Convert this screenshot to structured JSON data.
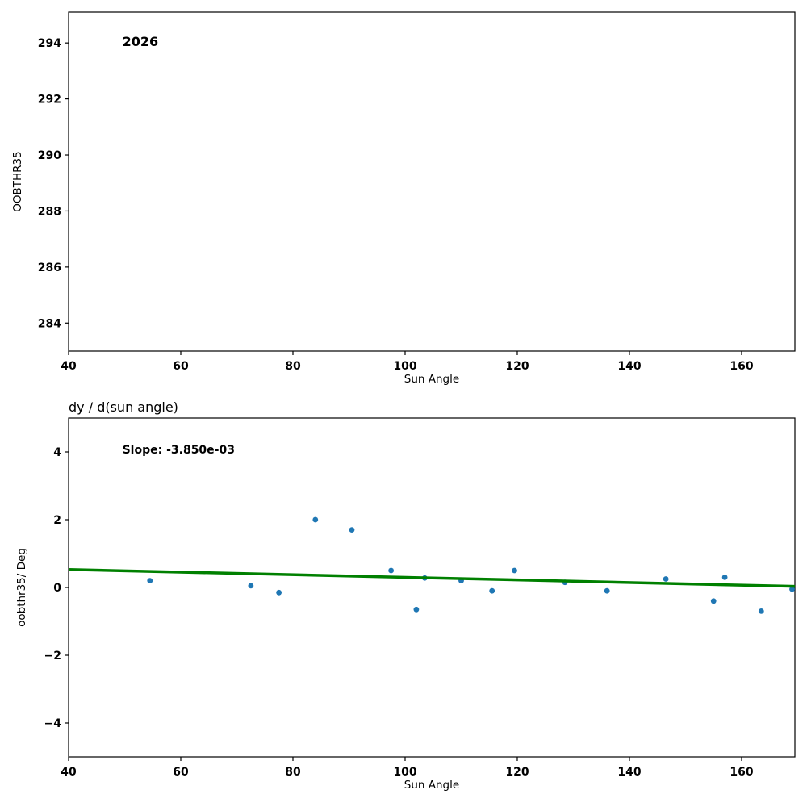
{
  "figure": {
    "background": "#ffffff",
    "marker_color": "#1f77b4",
    "fit_line_color": "#008000"
  },
  "chart_data": [
    {
      "id": "top",
      "type": "scatter",
      "title": "",
      "annotation": "2026",
      "xlabel": "Sun Angle",
      "ylabel": "OOBTHR35",
      "xlim": [
        40,
        169.5
      ],
      "ylim": [
        283.0,
        295.1
      ],
      "xticks": [
        40,
        60,
        80,
        100,
        120,
        140,
        160
      ],
      "yticks": [
        284,
        286,
        288,
        290,
        292,
        294
      ],
      "points": [],
      "grid": false,
      "legend": null
    },
    {
      "id": "bottom",
      "type": "scatter",
      "title": "dy / d(sun angle)",
      "annotation": "Slope: -3.850e-03",
      "xlabel": "Sun Angle",
      "ylabel": "oobthr35/ Deg",
      "xlim": [
        40,
        169.5
      ],
      "ylim": [
        -5,
        5
      ],
      "xticks": [
        40,
        60,
        80,
        100,
        120,
        140,
        160
      ],
      "yticks": [
        -4,
        -2,
        0,
        2,
        4
      ],
      "points": [
        [
          54.5,
          0.2
        ],
        [
          72.5,
          0.05
        ],
        [
          77.5,
          -0.15
        ],
        [
          84,
          2.0
        ],
        [
          90.5,
          1.7
        ],
        [
          97.5,
          0.5
        ],
        [
          102,
          -0.65
        ],
        [
          103.5,
          0.28
        ],
        [
          110,
          0.2
        ],
        [
          115.5,
          -0.1
        ],
        [
          119.5,
          0.5
        ],
        [
          128.5,
          0.15
        ],
        [
          136,
          -0.1
        ],
        [
          146.5,
          0.25
        ],
        [
          155,
          -0.4
        ],
        [
          157,
          0.3
        ],
        [
          163.5,
          -0.7
        ],
        [
          169,
          -0.05
        ]
      ],
      "fit_line": {
        "slope": -0.00385,
        "intercept": 0.684,
        "label": "Slope: -3.850e-03"
      },
      "grid": false,
      "legend": null
    }
  ]
}
